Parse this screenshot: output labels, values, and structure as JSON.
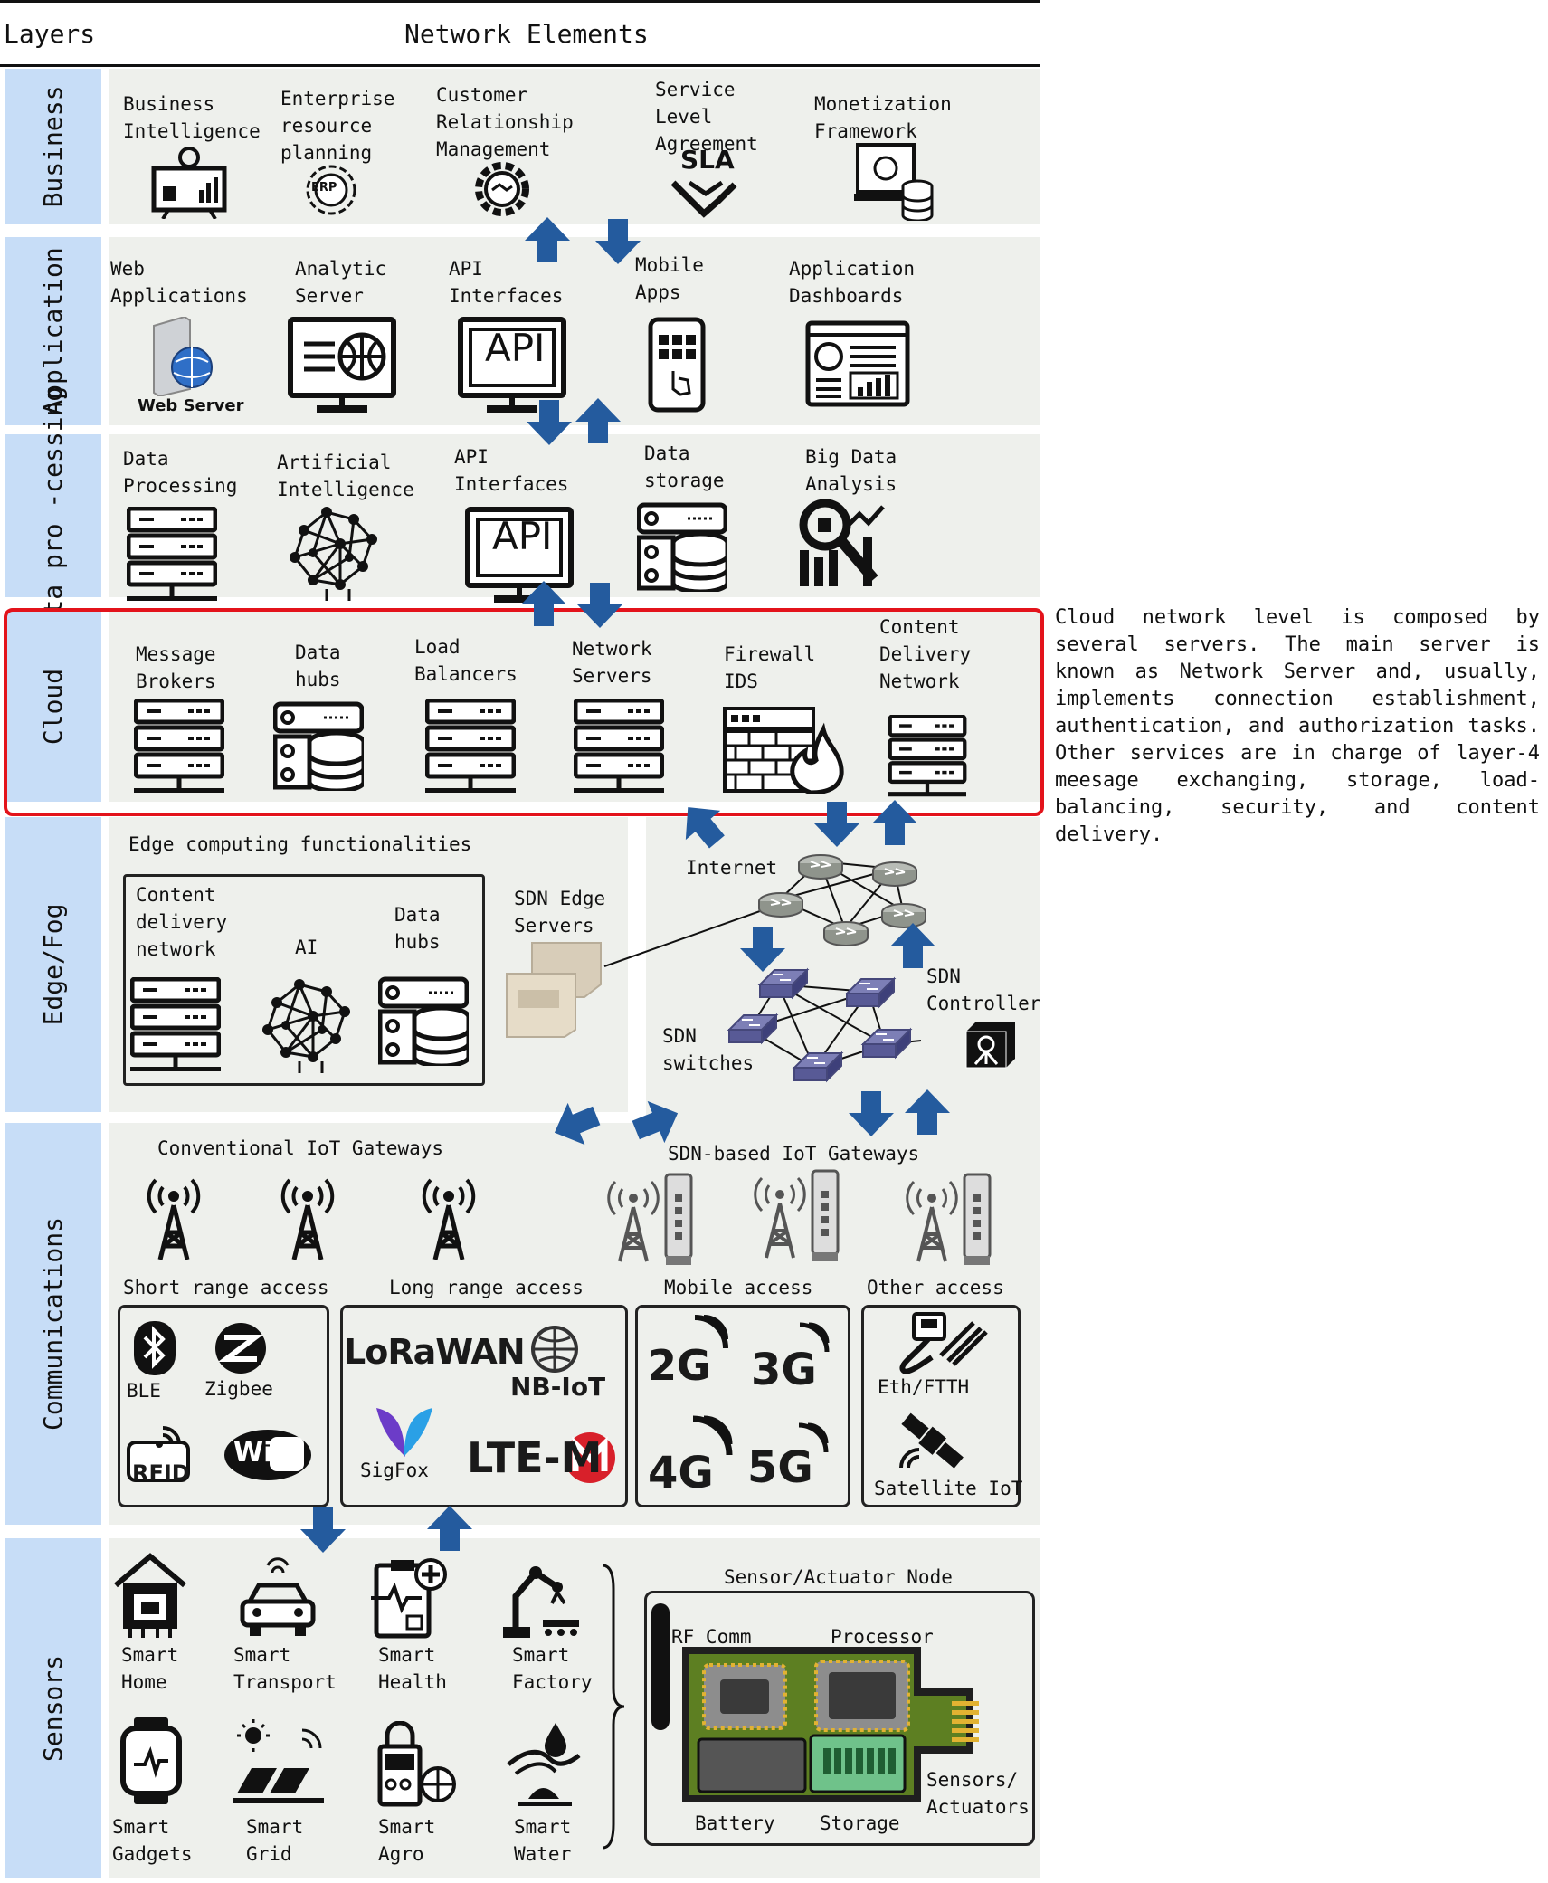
{
  "header": {
    "layers": "Layers",
    "elements": "Network Elements"
  },
  "layers": {
    "business": "Business",
    "application": "Application",
    "data": "Data pro\n-cessing",
    "cloud": "Cloud",
    "edge": "Edge/Fog",
    "comm": "Communications",
    "sensors": "Sensors"
  },
  "business": [
    "Business\nIntelligence",
    "Enterprise\nresource\nplanning",
    "Customer\nRelationship\nManagement",
    "Service\nLevel\nAgreement",
    "Monetization\nFramework"
  ],
  "business_badges": {
    "erp": "ERP",
    "sla": "SLA"
  },
  "application": [
    "Web\nApplications",
    "Analytic\nServer",
    "API\nInterfaces",
    "Mobile\nApps",
    "Application\nDashboards"
  ],
  "web_server_caption": "Web Server",
  "api_badge": "API",
  "data": [
    "Data\nProcessing",
    "Artificial\nIntelligence",
    "API\nInterfaces",
    "Data\nstorage",
    "Big Data\nAnalysis"
  ],
  "cloud": [
    "Message\nBrokers",
    "Data\nhubs",
    "Load\nBalancers",
    "Network\nServers",
    "Firewall\nIDS",
    "Content\nDelivery\nNetwork"
  ],
  "edge": {
    "title": "Edge computing functionalities",
    "items": [
      "Content\ndelivery\nnetwork",
      "AI",
      "Data\nhubs"
    ],
    "sdn_edge": "SDN Edge\nServers",
    "internet": "Internet",
    "sdn_controller": "SDN\nController",
    "sdn_switches": "SDN\nswitches"
  },
  "comm": {
    "conventional": "Conventional IoT Gateways",
    "sdn_based": "SDN-based IoT Gateways",
    "groups": [
      "Short range access",
      "Long range access",
      "Mobile access",
      "Other access"
    ],
    "short": [
      "BLE",
      "Zigbee",
      "RFID",
      "WiFi"
    ],
    "long": [
      "LoRaWAN",
      "NB-IoT",
      "SigFox",
      "LTE-M"
    ],
    "mobile": [
      "2G",
      "3G",
      "4G",
      "5G"
    ],
    "other": [
      "Eth/FTTH",
      "Satellite IoT"
    ]
  },
  "sensors": {
    "items": [
      "Smart\nHome",
      "Smart\nTransport",
      "Smart\nHealth",
      "Smart\nFactory",
      "Smart\nGadgets",
      "Smart\nGrid",
      "Smart\nAgro",
      "Smart\nWater"
    ],
    "node_title": "Sensor/Actuator Node",
    "node": [
      "RF Comm",
      "Processor",
      "Battery",
      "Storage",
      "Sensors/\nActuators"
    ]
  },
  "description": "Cloud network level is composed by several servers. The main server is known as Network Server and, usually, implements connection establishment, authentication, and authorization tasks. Other services are in charge of layer-4 meesage exchanging, storage, load-balancing, security, and content delivery.",
  "colors": {
    "label_band": "#c7ddf7",
    "content_band": "#eef0ec",
    "arrow": "#245b9e",
    "cloud_frame": "#e3131b"
  }
}
